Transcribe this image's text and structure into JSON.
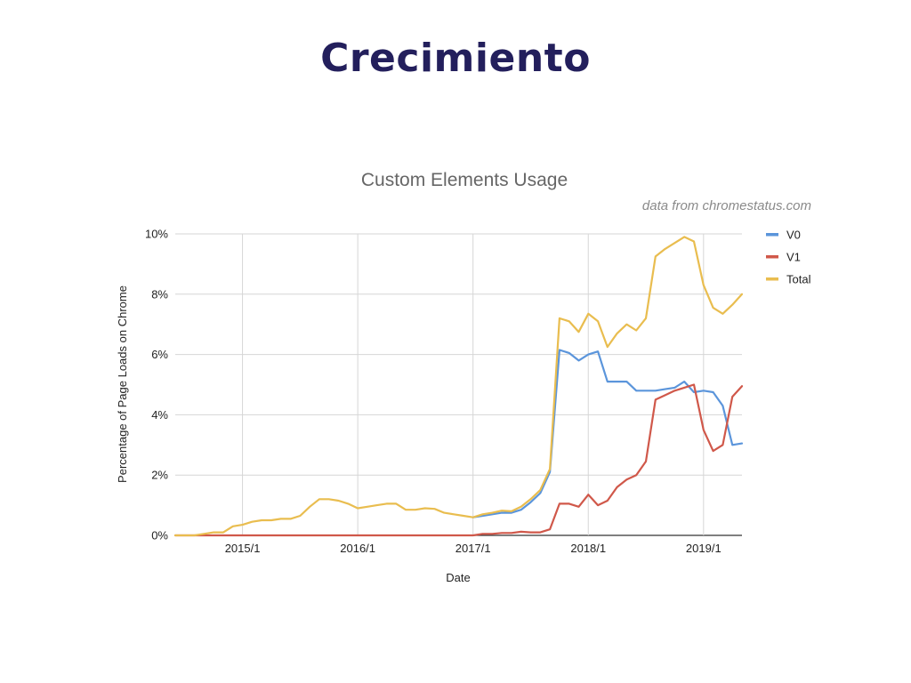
{
  "slide": {
    "title": "Crecimiento"
  },
  "chart_data": {
    "type": "line",
    "title": "Custom Elements Usage",
    "annotation": "data from chromestatus.com",
    "xlabel": "Date",
    "ylabel": "Percentage of Page Loads on Chrome",
    "x_ticks": [
      "2015/1",
      "2016/1",
      "2017/1",
      "2018/1",
      "2019/1"
    ],
    "y_ticks": [
      "0%",
      "2%",
      "4%",
      "6%",
      "8%",
      "10%"
    ],
    "ylim": [
      0,
      10
    ],
    "xlim": [
      "2014/6",
      "2019/5"
    ],
    "grid": true,
    "legend_position": "right",
    "series": [
      {
        "name": "V0",
        "color": "#5b95db",
        "points": [
          [
            "2017/1",
            0.6
          ],
          [
            "2017/2",
            0.65
          ],
          [
            "2017/3",
            0.7
          ],
          [
            "2017/4",
            0.75
          ],
          [
            "2017/5",
            0.75
          ],
          [
            "2017/6",
            0.85
          ],
          [
            "2017/7",
            1.1
          ],
          [
            "2017/8",
            1.4
          ],
          [
            "2017/9",
            2.1
          ],
          [
            "2017/10",
            6.15
          ],
          [
            "2017/11",
            6.05
          ],
          [
            "2017/12",
            5.8
          ],
          [
            "2018/1",
            6.0
          ],
          [
            "2018/2",
            6.1
          ],
          [
            "2018/3",
            5.1
          ],
          [
            "2018/4",
            5.1
          ],
          [
            "2018/5",
            5.1
          ],
          [
            "2018/6",
            4.8
          ],
          [
            "2018/7",
            4.8
          ],
          [
            "2018/8",
            4.8
          ],
          [
            "2018/9",
            4.85
          ],
          [
            "2018/10",
            4.9
          ],
          [
            "2018/11",
            5.1
          ],
          [
            "2018/12",
            4.75
          ],
          [
            "2019/1",
            4.8
          ],
          [
            "2019/2",
            4.75
          ],
          [
            "2019/3",
            4.3
          ],
          [
            "2019/4",
            3.0
          ],
          [
            "2019/5",
            3.05
          ]
        ]
      },
      {
        "name": "V1",
        "color": "#d0584a",
        "points": [
          [
            "2014/6",
            0
          ],
          [
            "2016/12",
            0
          ],
          [
            "2017/1",
            0
          ],
          [
            "2017/2",
            0.05
          ],
          [
            "2017/3",
            0.05
          ],
          [
            "2017/4",
            0.08
          ],
          [
            "2017/5",
            0.08
          ],
          [
            "2017/6",
            0.12
          ],
          [
            "2017/7",
            0.1
          ],
          [
            "2017/8",
            0.1
          ],
          [
            "2017/9",
            0.2
          ],
          [
            "2017/10",
            1.05
          ],
          [
            "2017/11",
            1.05
          ],
          [
            "2017/12",
            0.95
          ],
          [
            "2018/1",
            1.35
          ],
          [
            "2018/2",
            1.0
          ],
          [
            "2018/3",
            1.15
          ],
          [
            "2018/4",
            1.6
          ],
          [
            "2018/5",
            1.85
          ],
          [
            "2018/6",
            2.0
          ],
          [
            "2018/7",
            2.45
          ],
          [
            "2018/8",
            4.5
          ],
          [
            "2018/9",
            4.65
          ],
          [
            "2018/10",
            4.8
          ],
          [
            "2018/11",
            4.9
          ],
          [
            "2018/12",
            5.0
          ],
          [
            "2019/1",
            3.5
          ],
          [
            "2019/2",
            2.8
          ],
          [
            "2019/3",
            3.0
          ],
          [
            "2019/4",
            4.6
          ],
          [
            "2019/5",
            4.95
          ]
        ]
      },
      {
        "name": "Total",
        "color": "#e9bd4f",
        "points": [
          [
            "2014/6",
            0
          ],
          [
            "2014/7",
            0
          ],
          [
            "2014/8",
            0
          ],
          [
            "2014/9",
            0.05
          ],
          [
            "2014/10",
            0.1
          ],
          [
            "2014/11",
            0.1
          ],
          [
            "2014/12",
            0.3
          ],
          [
            "2015/1",
            0.35
          ],
          [
            "2015/2",
            0.45
          ],
          [
            "2015/3",
            0.5
          ],
          [
            "2015/4",
            0.5
          ],
          [
            "2015/5",
            0.55
          ],
          [
            "2015/6",
            0.55
          ],
          [
            "2015/7",
            0.65
          ],
          [
            "2015/8",
            0.95
          ],
          [
            "2015/9",
            1.2
          ],
          [
            "2015/10",
            1.2
          ],
          [
            "2015/11",
            1.15
          ],
          [
            "2015/12",
            1.05
          ],
          [
            "2016/1",
            0.9
          ],
          [
            "2016/2",
            0.95
          ],
          [
            "2016/3",
            1.0
          ],
          [
            "2016/4",
            1.05
          ],
          [
            "2016/5",
            1.05
          ],
          [
            "2016/6",
            0.85
          ],
          [
            "2016/7",
            0.85
          ],
          [
            "2016/8",
            0.9
          ],
          [
            "2016/9",
            0.88
          ],
          [
            "2016/10",
            0.75
          ],
          [
            "2016/11",
            0.7
          ],
          [
            "2016/12",
            0.65
          ],
          [
            "2017/1",
            0.6
          ],
          [
            "2017/2",
            0.7
          ],
          [
            "2017/3",
            0.75
          ],
          [
            "2017/4",
            0.82
          ],
          [
            "2017/5",
            0.8
          ],
          [
            "2017/6",
            0.95
          ],
          [
            "2017/7",
            1.2
          ],
          [
            "2017/8",
            1.5
          ],
          [
            "2017/9",
            2.2
          ],
          [
            "2017/10",
            7.2
          ],
          [
            "2017/11",
            7.1
          ],
          [
            "2017/12",
            6.75
          ],
          [
            "2018/1",
            7.35
          ],
          [
            "2018/2",
            7.1
          ],
          [
            "2018/3",
            6.25
          ],
          [
            "2018/4",
            6.7
          ],
          [
            "2018/5",
            7.0
          ],
          [
            "2018/6",
            6.8
          ],
          [
            "2018/7",
            7.2
          ],
          [
            "2018/8",
            9.25
          ],
          [
            "2018/9",
            9.5
          ],
          [
            "2018/10",
            9.7
          ],
          [
            "2018/11",
            9.9
          ],
          [
            "2018/12",
            9.75
          ],
          [
            "2019/1",
            8.3
          ],
          [
            "2019/2",
            7.55
          ],
          [
            "2019/3",
            7.35
          ],
          [
            "2019/4",
            7.65
          ],
          [
            "2019/5",
            8.0
          ]
        ]
      }
    ]
  }
}
